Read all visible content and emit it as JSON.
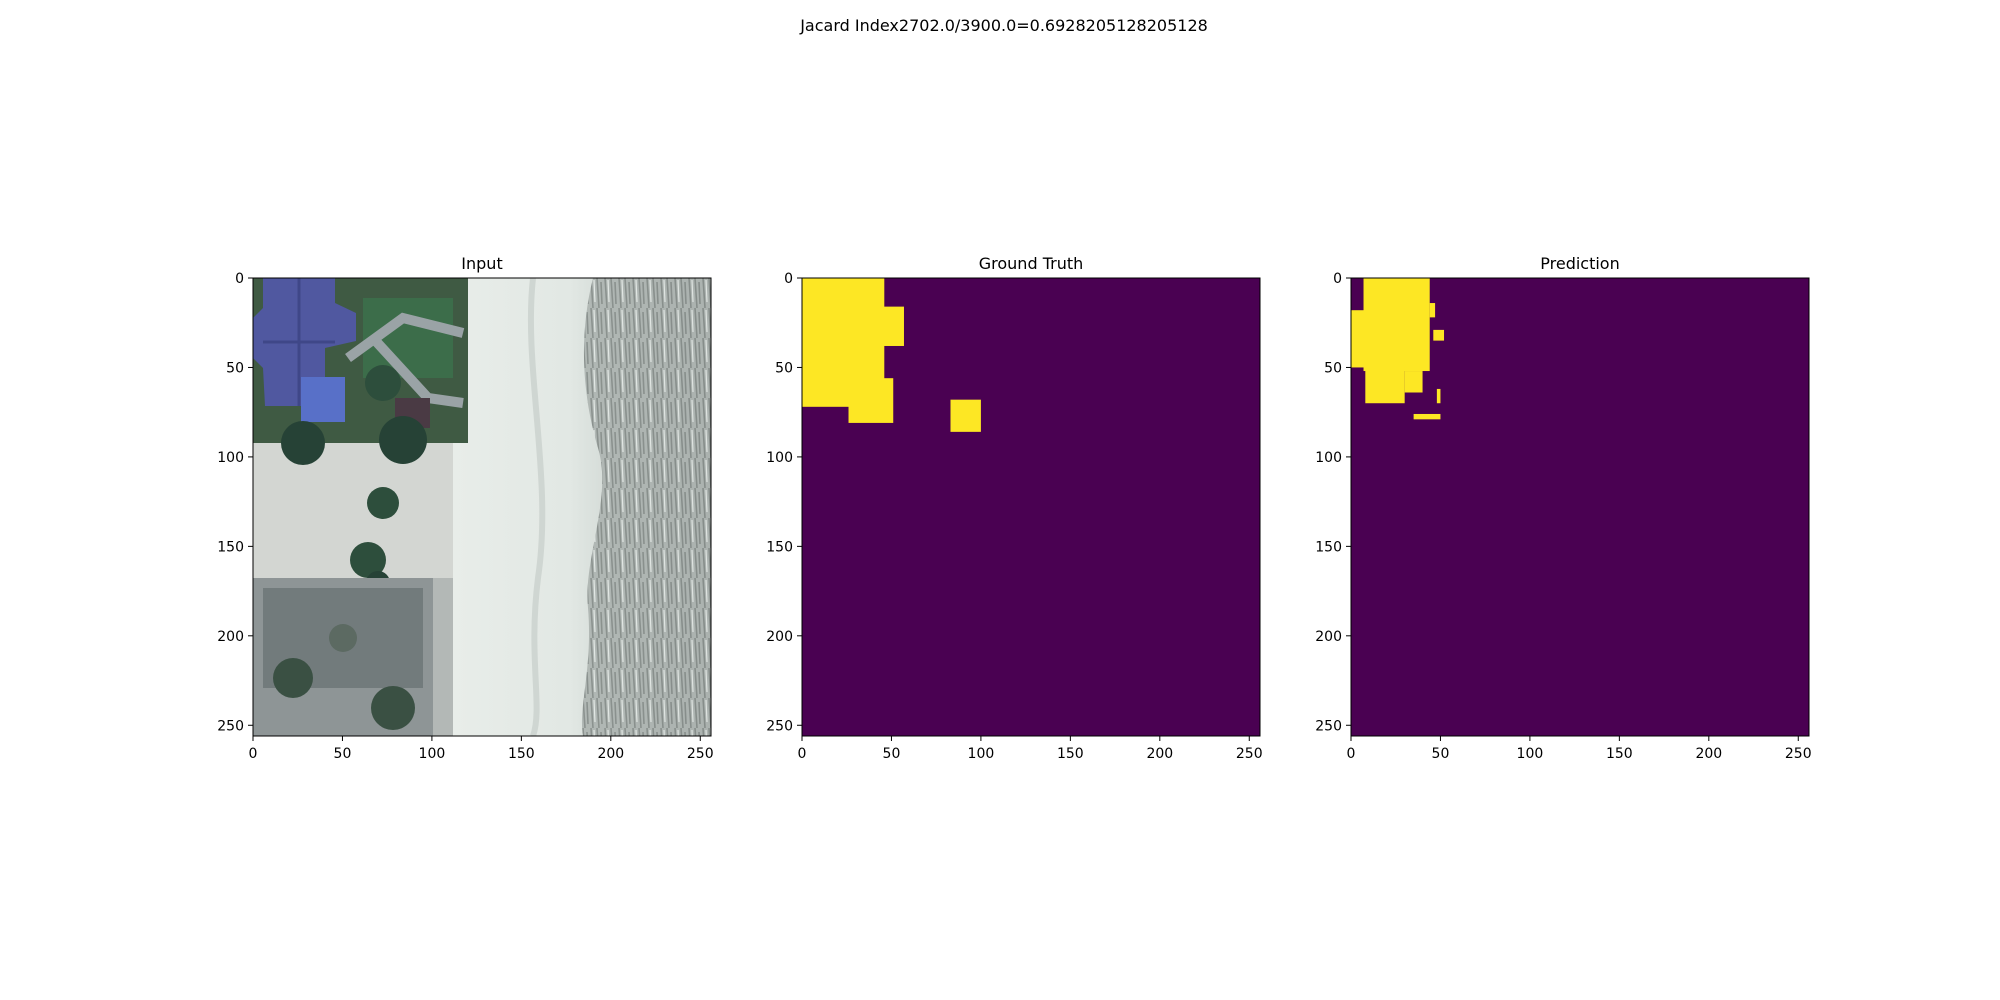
{
  "figure": {
    "suptitle": "Jacard Index2702.0/3900.0=0.6928205128205128"
  },
  "colors": {
    "background": "#4a0152",
    "foreground": "#fde724",
    "frame": "#000000"
  },
  "chart_data": [
    {
      "type": "heatmap",
      "title": "Input",
      "xlabel": "",
      "ylabel": "",
      "xlim": [
        0,
        256
      ],
      "ylim": [
        256,
        0
      ],
      "xticks": [
        0,
        50,
        100,
        150,
        200,
        250
      ],
      "yticks": [
        0,
        50,
        100,
        150,
        200,
        250
      ],
      "grid": false,
      "content": "aerial-photo"
    },
    {
      "type": "heatmap",
      "title": "Ground Truth",
      "xlabel": "",
      "ylabel": "",
      "xlim": [
        0,
        256
      ],
      "ylim": [
        256,
        0
      ],
      "xticks": [
        0,
        50,
        100,
        150,
        200,
        250
      ],
      "yticks": [
        0,
        50,
        100,
        150,
        200,
        250
      ],
      "grid": false,
      "mask_regions": [
        {
          "x0": 0,
          "x1": 46,
          "y0": 0,
          "y1": 72
        },
        {
          "x0": 26,
          "x1": 57,
          "y0": 16,
          "y1": 38
        },
        {
          "x0": 26,
          "x1": 51,
          "y0": 56,
          "y1": 81
        },
        {
          "x0": 83,
          "x1": 100,
          "y0": 68,
          "y1": 86
        }
      ]
    },
    {
      "type": "heatmap",
      "title": "Prediction",
      "xlabel": "",
      "ylabel": "",
      "xlim": [
        0,
        256
      ],
      "ylim": [
        256,
        0
      ],
      "xticks": [
        0,
        50,
        100,
        150,
        200,
        250
      ],
      "yticks": [
        0,
        50,
        100,
        150,
        200,
        250
      ],
      "grid": false,
      "mask_regions": [
        {
          "x0": 7,
          "x1": 44,
          "y0": 0,
          "y1": 52
        },
        {
          "x0": 0,
          "x1": 8,
          "y0": 18,
          "y1": 50
        },
        {
          "x0": 8,
          "x1": 30,
          "y0": 50,
          "y1": 70
        },
        {
          "x0": 30,
          "x1": 40,
          "y0": 52,
          "y1": 64
        },
        {
          "x0": 44,
          "x1": 47,
          "y0": 14,
          "y1": 22
        },
        {
          "x0": 46,
          "x1": 52,
          "y0": 29,
          "y1": 35
        },
        {
          "x0": 48,
          "x1": 50,
          "y0": 62,
          "y1": 70
        },
        {
          "x0": 35,
          "x1": 50,
          "y0": 76,
          "y1": 79
        }
      ]
    }
  ]
}
